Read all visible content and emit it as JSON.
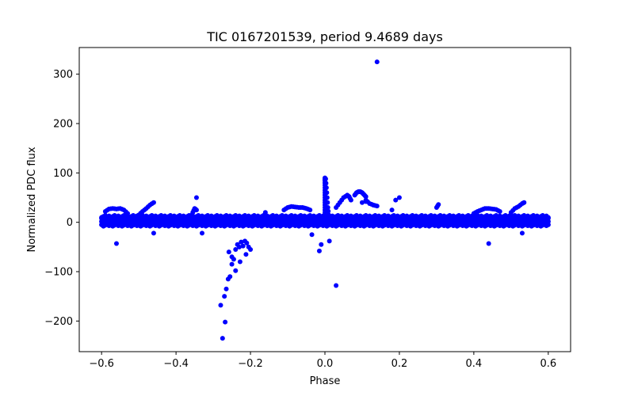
{
  "chart_data": {
    "type": "scatter",
    "title": "TIC 0167201539, period 9.4689 days",
    "xlabel": "Phase",
    "ylabel": "Normalized PDC flux",
    "xlim": [
      -0.66,
      0.66
    ],
    "ylim": [
      -262,
      354
    ],
    "xticks": [
      -0.6,
      -0.4,
      -0.2,
      0.0,
      0.2,
      0.4,
      0.6
    ],
    "xtick_labels": [
      "−0.6",
      "−0.4",
      "−0.2",
      "0.0",
      "0.2",
      "0.4",
      "0.6"
    ],
    "yticks": [
      -200,
      -100,
      0,
      100,
      200,
      300
    ],
    "ytick_labels": [
      "−200",
      "−100",
      "0",
      "100",
      "200",
      "300"
    ],
    "grid": false,
    "series": [
      {
        "name": "flux",
        "color": "#0000ff",
        "band": {
          "x_range": [
            -0.6,
            0.6
          ],
          "y_values": [
            -3,
            0,
            3,
            6,
            9,
            12,
            -6
          ]
        },
        "segments": [
          {
            "x": [
              -0.59,
              -0.58,
              -0.57,
              -0.56,
              -0.55,
              -0.54,
              -0.53
            ],
            "y": [
              22,
              27,
              28,
              27,
              28,
              25,
              18
            ]
          },
          {
            "x": [
              -0.5,
              -0.49,
              -0.48,
              -0.47,
              -0.46
            ],
            "y": [
              15,
              22,
              28,
              35,
              40
            ]
          },
          {
            "x": [
              -0.36,
              -0.355,
              -0.35,
              -0.345
            ],
            "y": [
              10,
              20,
              28,
              25
            ]
          },
          {
            "x": [
              -0.11,
              -0.1,
              -0.09,
              -0.08,
              -0.07,
              -0.06,
              -0.05,
              -0.04
            ],
            "y": [
              25,
              30,
              32,
              31,
              30,
              30,
              28,
              25
            ]
          },
          {
            "x": [
              0.03,
              0.04,
              0.05,
              0.06,
              0.065,
              0.07
            ],
            "y": [
              30,
              40,
              50,
              55,
              52,
              45
            ]
          },
          {
            "x": [
              0.08,
              0.085,
              0.09,
              0.095,
              0.1,
              0.105,
              0.11
            ],
            "y": [
              55,
              60,
              62,
              62,
              60,
              56,
              52
            ]
          },
          {
            "x": [
              0.11,
              0.12,
              0.13,
              0.14
            ],
            "y": [
              45,
              38,
              35,
              33
            ]
          },
          {
            "x": [
              0.3,
              0.305
            ],
            "y": [
              30,
              36
            ]
          },
          {
            "x": [
              0.4,
              0.41,
              0.42,
              0.43,
              0.44,
              0.45,
              0.46,
              0.47
            ],
            "y": [
              18,
              22,
              25,
              28,
              28,
              27,
              26,
              22
            ]
          },
          {
            "x": [
              0.5,
              0.51,
              0.52,
              0.53,
              0.535
            ],
            "y": [
              20,
              28,
              32,
              38,
              40
            ]
          },
          {
            "x": [
              0.0,
              0.0,
              0.0,
              0.0,
              0.0,
              0.0,
              0.0,
              0.0,
              0.0,
              0.0
            ],
            "y": [
              15,
              25,
              35,
              45,
              55,
              65,
              75,
              85,
              90,
              80
            ]
          },
          {
            "x": [
              0.002,
              0.004,
              0.006,
              0.008,
              0.01
            ],
            "y": [
              88,
              70,
              50,
              30,
              15
            ]
          }
        ],
        "outliers": {
          "x": [
            0.14,
            -0.275,
            -0.27,
            -0.265,
            -0.26,
            -0.255,
            -0.25,
            -0.245,
            -0.28,
            -0.268,
            -0.258,
            -0.25,
            -0.24,
            -0.235,
            -0.23,
            -0.225,
            -0.22,
            -0.215,
            -0.21,
            -0.205,
            -0.2,
            -0.24,
            -0.228,
            -0.212,
            0.03,
            -0.01,
            -0.015,
            0.012,
            -0.035,
            -0.56,
            -0.46,
            -0.33,
            -0.345,
            0.44,
            0.53,
            0.19,
            0.18,
            0.2,
            0.1,
            0.11,
            0.13,
            -0.16
          ],
          "y": [
            325,
            -235,
            -150,
            -135,
            -115,
            -110,
            -85,
            -75,
            -168,
            -202,
            -60,
            -70,
            -55,
            -45,
            -50,
            -40,
            -48,
            -38,
            -42,
            -50,
            -55,
            -98,
            -80,
            -65,
            -128,
            -45,
            -58,
            -38,
            -25,
            -43,
            -22,
            -22,
            50,
            -43,
            -22,
            45,
            25,
            50,
            40,
            42,
            35,
            20
          ]
        }
      }
    ]
  }
}
